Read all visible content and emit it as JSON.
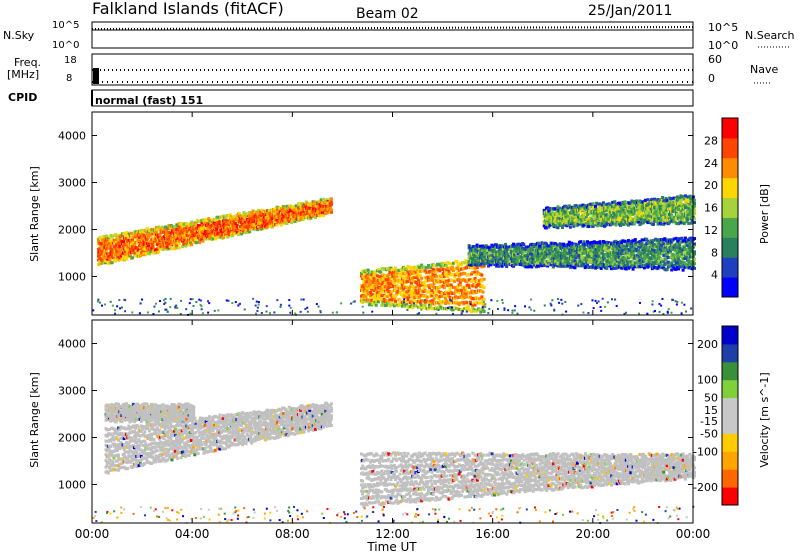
{
  "header": {
    "station": "Falkland Islands (fitACF)",
    "beam": "Beam 02",
    "date": "25/Jan/2011"
  },
  "noise_panel": {
    "left_label": "N.Sky",
    "right_label": "N.Search",
    "left_ticks": [
      "10^5",
      "10^0"
    ],
    "right_ticks": [
      "10^5",
      "10^0"
    ]
  },
  "freq_panel": {
    "left_label_1": "Freq.",
    "left_label_2": "[MHz]",
    "right_label": "Nave",
    "left_ticks": [
      "18",
      "8"
    ],
    "right_ticks": [
      "60",
      "0"
    ]
  },
  "cpid_panel": {
    "label": "CPID",
    "program": "normal (fast) 151"
  },
  "colors": {
    "power_scale": [
      "#0000ff",
      "#1e3fbf",
      "#2a7f5f",
      "#4aa64a",
      "#a6d23c",
      "#ffd700",
      "#ff8c00",
      "#ff4500",
      "#ff0000"
    ],
    "velocity_scale": [
      "#ff0000",
      "#ff6600",
      "#ffa500",
      "#ffcc00",
      "#c8c8c8",
      "#c8c8c8",
      "#7fd13b",
      "#3a8f3a",
      "#1f3fa8",
      "#0000cd"
    ],
    "ground_scatter": "#c0c0c0"
  },
  "chart_data": [
    {
      "type": "heatmap",
      "name": "power",
      "ylabel": "Slant Range [km]",
      "xlabel": "",
      "yticks": [
        "1000",
        "2000",
        "3000",
        "4000"
      ],
      "ylim": [
        180,
        4500
      ],
      "colorbar_label": "Power [dB]",
      "colorbar_ticks": [
        "4",
        "8",
        "12",
        "16",
        "20",
        "24",
        "28"
      ],
      "colorbar_range": [
        0,
        32
      ],
      "bands": [
        {
          "x": [
            0.2,
            9.5
          ],
          "y0": [
            1300,
            2400
          ],
          "y1": [
            1900,
            2700
          ],
          "level": 26
        },
        {
          "x": [
            10.7,
            15.6
          ],
          "y0": [
            480,
            300
          ],
          "y1": [
            1200,
            1500
          ],
          "level": 24
        },
        {
          "x": [
            15.0,
            24.0
          ],
          "y0": [
            1300,
            1200
          ],
          "y1": [
            1700,
            1900
          ],
          "level": 10
        },
        {
          "x": [
            18.0,
            24.0
          ],
          "y0": [
            2100,
            2200
          ],
          "y1": [
            2500,
            2800
          ],
          "level": 14
        }
      ]
    },
    {
      "type": "heatmap",
      "name": "velocity",
      "ylabel": "Slant Range [km]",
      "xlabel": "Time UT",
      "yticks": [
        "1000",
        "2000",
        "3000",
        "4000"
      ],
      "ylim": [
        180,
        4500
      ],
      "colorbar_label": "Velocity [m s^-1]",
      "colorbar_ticks": [
        "-200",
        "-100",
        "-50",
        "-15",
        "15",
        "50",
        "100",
        "200"
      ],
      "colorbar_range": [
        -250,
        250
      ],
      "xticks": [
        "00:00",
        "04:00",
        "08:00",
        "12:00",
        "16:00",
        "20:00",
        "00:00"
      ],
      "xlim": [
        0,
        24
      ],
      "bands": [
        {
          "x": [
            0.5,
            9.5
          ],
          "y0": [
            1300,
            2300
          ],
          "y1": [
            2300,
            2800
          ],
          "level": 0
        },
        {
          "x": [
            10.7,
            24.0
          ],
          "y0": [
            600,
            1200
          ],
          "y1": [
            1800,
            1700
          ],
          "level": 0
        },
        {
          "x": [
            0.5,
            4.0
          ],
          "y0": [
            2400,
            2400
          ],
          "y1": [
            2750,
            2750
          ],
          "level": 0
        }
      ]
    }
  ]
}
